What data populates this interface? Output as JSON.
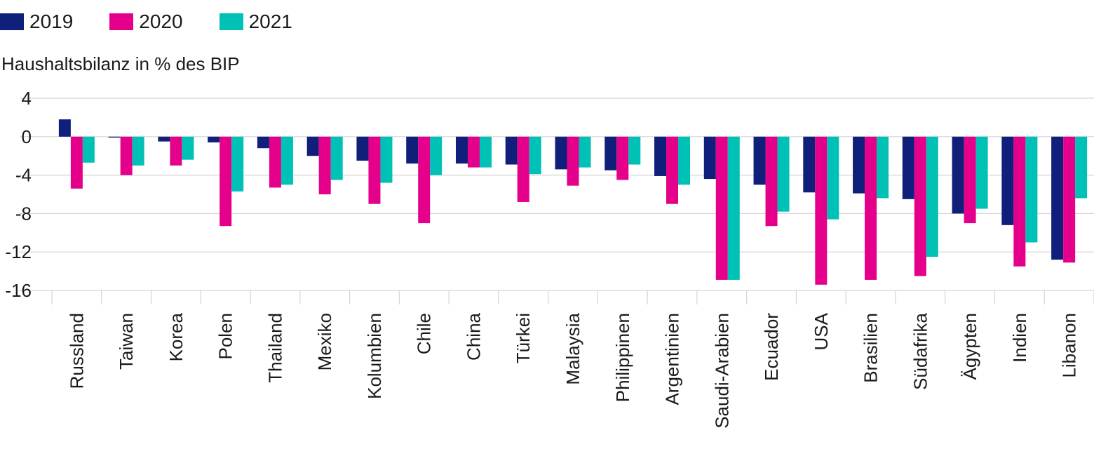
{
  "chart_data": {
    "type": "bar",
    "title": "",
    "ylabel": "Haushaltsbilanz in % des BIP",
    "xlabel": "",
    "ylim": [
      -16,
      4
    ],
    "yticks": [
      4,
      0,
      -4,
      -8,
      -12,
      -16
    ],
    "grid": true,
    "legend_position": "top-left",
    "categories": [
      "Russland",
      "Taiwan",
      "Korea",
      "Polen",
      "Thailand",
      "Mexiko",
      "Kolumbien",
      "Chile",
      "China",
      "Türkei",
      "Malaysia",
      "Philippinen",
      "Argentinien",
      "Saudi-Arabien",
      "Ecuador",
      "USA",
      "Brasilien",
      "Südafrika",
      "Ägypten",
      "Indien",
      "Libanon"
    ],
    "series": [
      {
        "name": "2019",
        "color": "#0f1f7a",
        "values": [
          1.8,
          -0.1,
          -0.5,
          -0.6,
          -1.2,
          -2.0,
          -2.5,
          -2.8,
          -2.8,
          -2.9,
          -3.4,
          -3.5,
          -4.1,
          -4.4,
          -5.0,
          -5.8,
          -5.9,
          -6.5,
          -8.0,
          -9.2,
          -12.8
        ]
      },
      {
        "name": "2020",
        "color": "#e5008c",
        "values": [
          -5.4,
          -4.0,
          -3.0,
          -9.3,
          -5.3,
          -6.0,
          -7.0,
          -9.0,
          -3.2,
          -6.8,
          -5.1,
          -4.5,
          -7.0,
          -14.9,
          -9.3,
          -15.4,
          -14.9,
          -14.5,
          -9.0,
          -13.5,
          -13.1
        ]
      },
      {
        "name": "2021",
        "color": "#00c1b5",
        "values": [
          -2.7,
          -3.0,
          -2.4,
          -5.7,
          -5.0,
          -4.5,
          -4.8,
          -4.0,
          -3.2,
          -3.9,
          -3.2,
          -2.9,
          -5.0,
          -14.9,
          -7.8,
          -8.6,
          -6.4,
          -12.5,
          -7.5,
          -11.0,
          -6.4
        ]
      }
    ]
  }
}
